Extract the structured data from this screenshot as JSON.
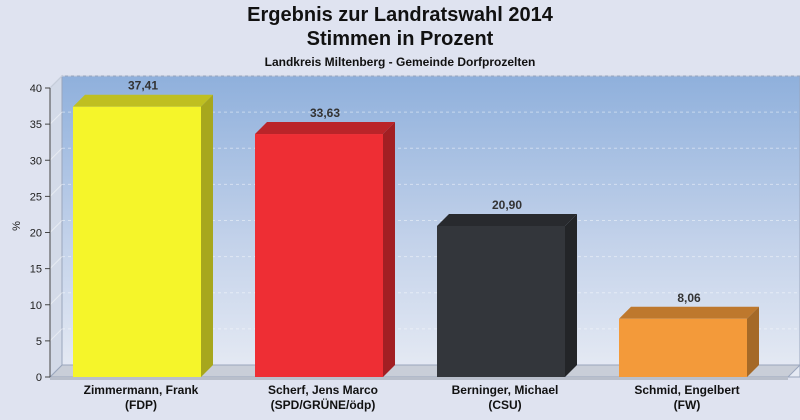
{
  "chart_data": {
    "type": "bar",
    "title": "Ergebnis zur Landratswahl 2014",
    "subtitle": "Stimmen in Prozent",
    "subtitle2": "Landkreis Miltenberg - Gemeinde Dorfprozelten",
    "ylabel": "%",
    "ylim": [
      0,
      40
    ],
    "yticks": [
      "0",
      "5",
      "10",
      "15",
      "20",
      "25",
      "30",
      "35",
      "40"
    ],
    "categories": [
      {
        "name": "Zimmermann, Frank",
        "party": "(FDP)"
      },
      {
        "name": "Scherf, Jens Marco",
        "party": "(SPD/GRÜNE/ödp)"
      },
      {
        "name": "Berninger, Michael",
        "party": "(CSU)"
      },
      {
        "name": "Schmid, Engelbert",
        "party": "(FW)"
      }
    ],
    "values": [
      37.41,
      33.63,
      20.9,
      8.06
    ],
    "value_labels": [
      "37,41",
      "33,63",
      "20,90",
      "8,06"
    ],
    "colors": [
      "#f5f52a",
      "#ee2e34",
      "#33363b",
      "#f39a3a"
    ],
    "grid": true
  }
}
